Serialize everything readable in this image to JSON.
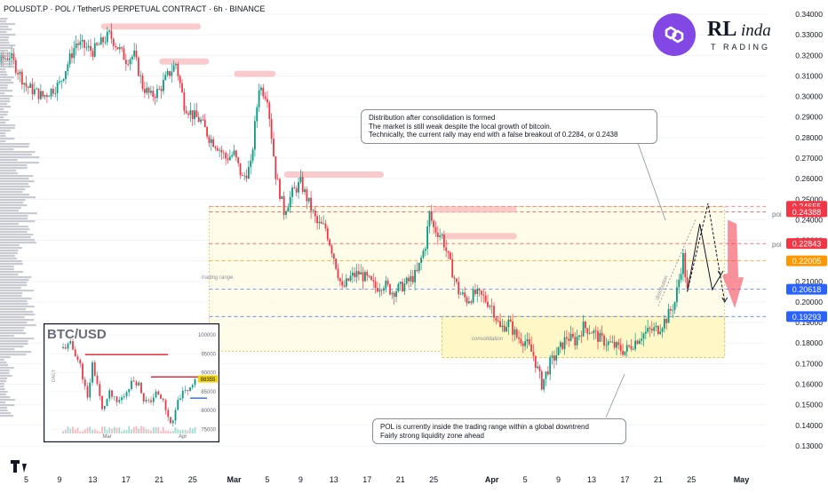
{
  "header": {
    "title": "POLUSDT.P · POL / TetherUS PERPETUAL CONTRACT · 6h · BINANCE"
  },
  "brand": {
    "logo_icon": "polygon-logo-icon",
    "logo_color": "#8247e5",
    "name_big": "RL",
    "name_script": "inda",
    "name_tail": "T",
    "name_sub": "RADING"
  },
  "price_axis": {
    "labels": [
      "0.34000",
      "0.33000",
      "0.32000",
      "0.31000",
      "0.30000",
      "0.29000",
      "0.28000",
      "0.27000",
      "0.26000",
      "0.25000",
      "0.24000",
      "0.23000",
      "0.22000",
      "0.21000",
      "0.20000",
      "0.19000",
      "0.18000",
      "0.17000",
      "0.16000",
      "0.15000",
      "0.14000",
      "0.13000"
    ],
    "values": [
      0.34,
      0.33,
      0.32,
      0.31,
      0.3,
      0.29,
      0.28,
      0.27,
      0.26,
      0.25,
      0.24,
      0.23,
      0.22,
      0.21,
      0.2,
      0.19,
      0.18,
      0.17,
      0.16,
      0.15,
      0.14,
      0.13
    ]
  },
  "time_axis": {
    "labels": [
      "5",
      "9",
      "13",
      "17",
      "21",
      "25",
      "Mar",
      "5",
      "9",
      "13",
      "17",
      "21",
      "25",
      "Apr",
      "5",
      "9",
      "13",
      "17",
      "21",
      "25",
      "May"
    ],
    "days": [
      -25,
      -21,
      -17,
      -13,
      -9,
      -5,
      0,
      4,
      8,
      12,
      16,
      20,
      24,
      31,
      35,
      39,
      43,
      47,
      51,
      55,
      61
    ]
  },
  "levels": [
    {
      "label": "0.24655",
      "value": 0.24655,
      "color": "#f23645"
    },
    {
      "label": "0.24388",
      "value": 0.24388,
      "color": "#f23645"
    },
    {
      "label": "0.22843",
      "value": 0.22843,
      "color": "#f23645"
    },
    {
      "label": "0.22005",
      "value": 0.22005,
      "color": "#ff9800"
    },
    {
      "label": "0.20618",
      "value": 0.20618,
      "color": "#2962ff"
    },
    {
      "label": "0.19293",
      "value": 0.19293,
      "color": "#2962ff"
    }
  ],
  "annotations": {
    "poi_upper": "poi",
    "poi_lower": "poi",
    "trading_range": "trading range",
    "consolidation": "consolidation",
    "distribution": "distribution",
    "callout_top": [
      "Distribution after consolidation is formed",
      "The market is still weak despite the local growth of bitcoin.",
      "Technically, the current rally may end with a false breakout of 0.2284, or 0.2438"
    ],
    "callout_bottom": [
      "POL is currently inside the trading range within a global downtrend",
      "Fairly strong liquidity zone ahead"
    ]
  },
  "colors": {
    "up": "#089981",
    "down": "#f23645",
    "zone_fill": "#fff8c4",
    "level_red": "#f23645",
    "level_orange": "#ff9800",
    "level_blue": "#2962ff"
  },
  "inset": {
    "title": "BTC/USD",
    "timeframe": "DAILY",
    "price_labels": [
      "100000",
      "95000",
      "90000",
      "85000",
      "80000",
      "75000"
    ],
    "price_values": [
      100000,
      95000,
      90000,
      85000,
      80000,
      75000
    ],
    "current_price_label": "88355",
    "current_price": 88355,
    "resistance_upper": 94800,
    "resistance_lower": 88900,
    "support": 83300,
    "time_labels": [
      "Mar",
      "Apr"
    ]
  },
  "chart_data": {
    "type": "candlestick",
    "title": "POLUSDT.P · POL / TetherUS PERPETUAL CONTRACT · 6h · BINANCE",
    "x_unit": "days from Mar 1",
    "ylim": [
      0.125,
      0.345
    ],
    "close_path": [
      [
        -33,
        0.34
      ],
      [
        -31,
        0.318
      ],
      [
        -29,
        0.315
      ],
      [
        -27,
        0.32
      ],
      [
        -25,
        0.305
      ],
      [
        -23,
        0.3
      ],
      [
        -21,
        0.306
      ],
      [
        -19,
        0.326
      ],
      [
        -17,
        0.322
      ],
      [
        -15,
        0.33
      ],
      [
        -13,
        0.318
      ],
      [
        -12,
        0.32
      ],
      [
        -11,
        0.305
      ],
      [
        -10,
        0.3
      ],
      [
        -9,
        0.303
      ],
      [
        -8,
        0.31
      ],
      [
        -7,
        0.316
      ],
      [
        -6,
        0.296
      ],
      [
        -5,
        0.291
      ],
      [
        -4,
        0.288
      ],
      [
        -3,
        0.28
      ],
      [
        -2,
        0.276
      ],
      [
        -1,
        0.27
      ],
      [
        0,
        0.272
      ],
      [
        1,
        0.26
      ],
      [
        2,
        0.266
      ],
      [
        3,
        0.305
      ],
      [
        4,
        0.3
      ],
      [
        5,
        0.262
      ],
      [
        6,
        0.244
      ],
      [
        7,
        0.253
      ],
      [
        8,
        0.258
      ],
      [
        9,
        0.248
      ],
      [
        10,
        0.238
      ],
      [
        11,
        0.236
      ],
      [
        12,
        0.222
      ],
      [
        13,
        0.206
      ],
      [
        14,
        0.212
      ],
      [
        15,
        0.214
      ],
      [
        16,
        0.211
      ],
      [
        17,
        0.207
      ],
      [
        18,
        0.209
      ],
      [
        19,
        0.205
      ],
      [
        20,
        0.207
      ],
      [
        21,
        0.21
      ],
      [
        22,
        0.214
      ],
      [
        23,
        0.228
      ],
      [
        23.5,
        0.243
      ],
      [
        24,
        0.236
      ],
      [
        25,
        0.232
      ],
      [
        26,
        0.218
      ],
      [
        27,
        0.205
      ],
      [
        28,
        0.201
      ],
      [
        29,
        0.204
      ],
      [
        30,
        0.202
      ],
      [
        31,
        0.198
      ],
      [
        32,
        0.187
      ],
      [
        33,
        0.19
      ],
      [
        34,
        0.183
      ],
      [
        35,
        0.181
      ],
      [
        36,
        0.174
      ],
      [
        37,
        0.16
      ],
      [
        38,
        0.17
      ],
      [
        39,
        0.176
      ],
      [
        40,
        0.183
      ],
      [
        41,
        0.181
      ],
      [
        42,
        0.188
      ],
      [
        43,
        0.186
      ],
      [
        44,
        0.182
      ],
      [
        45,
        0.18
      ],
      [
        46,
        0.178
      ],
      [
        47,
        0.176
      ],
      [
        48,
        0.18
      ],
      [
        49,
        0.184
      ],
      [
        50,
        0.186
      ],
      [
        51,
        0.187
      ],
      [
        52,
        0.192
      ],
      [
        53,
        0.2
      ],
      [
        54,
        0.222
      ],
      [
        54.5,
        0.205
      ]
    ],
    "projection": [
      [
        54.5,
        0.205
      ],
      [
        56,
        0.238
      ],
      [
        57.5,
        0.206
      ],
      [
        58.5,
        0.213
      ]
    ],
    "projection_alt": [
      [
        54.5,
        0.205
      ],
      [
        57,
        0.248
      ],
      [
        59,
        0.2
      ]
    ],
    "zones": [
      {
        "name": "trading range",
        "from_day": -3,
        "to_day": 59,
        "low": 0.176,
        "high": 0.2465
      },
      {
        "name": "consolidation",
        "from_day": 25,
        "to_day": 59,
        "low": 0.173,
        "high": 0.193
      }
    ],
    "resistance_marks": [
      {
        "from_day": -16,
        "to_day": -4,
        "value": 0.334
      },
      {
        "from_day": -9,
        "to_day": -3,
        "value": 0.317
      },
      {
        "from_day": 0,
        "to_day": 5,
        "value": 0.311
      },
      {
        "from_day": 6,
        "to_day": 18,
        "value": 0.262
      },
      {
        "from_day": 24,
        "to_day": 34,
        "value": 0.245
      },
      {
        "from_day": 25,
        "to_day": 34,
        "value": 0.232
      }
    ]
  }
}
